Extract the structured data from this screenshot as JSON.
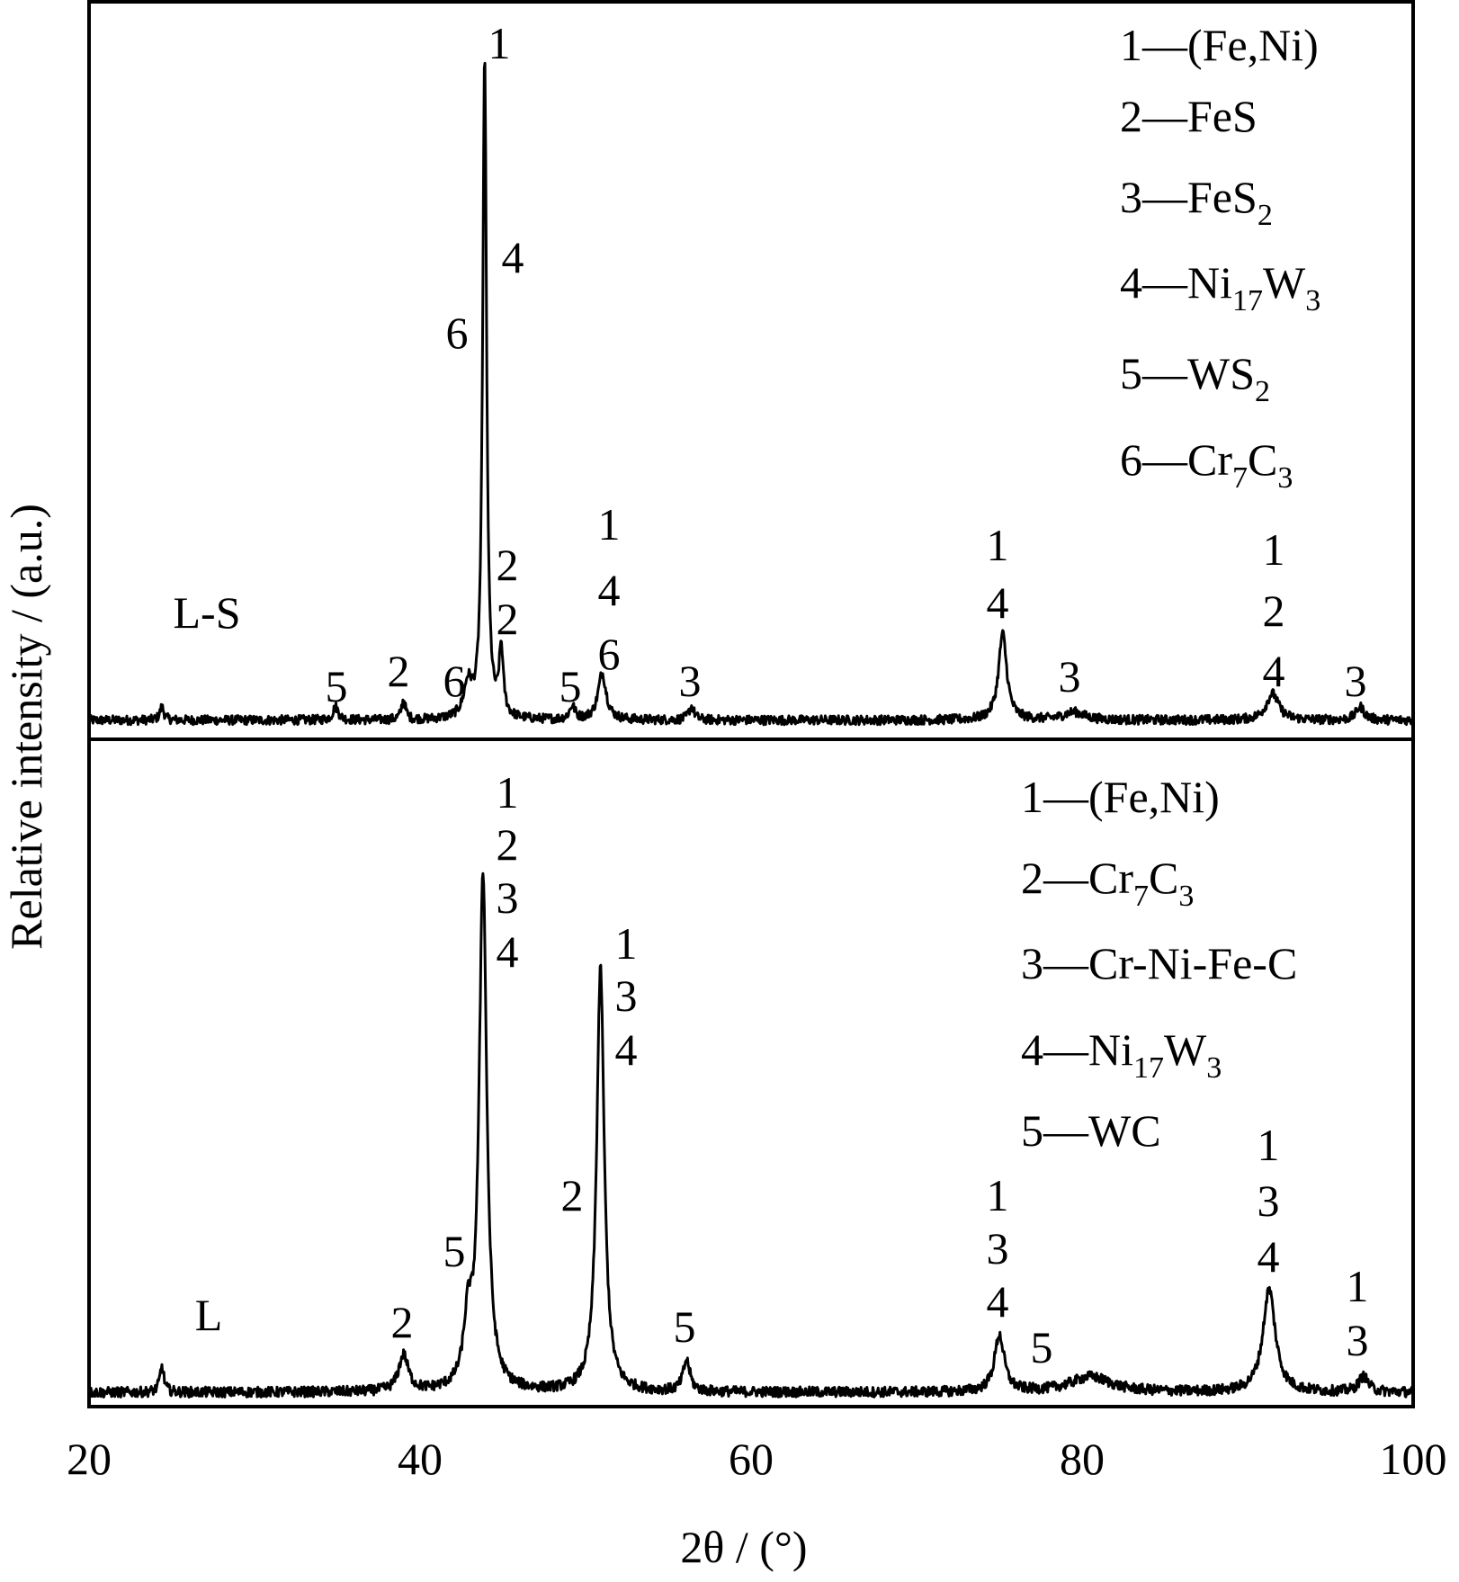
{
  "chart_data": {
    "type": "line",
    "xlabel": "2θ / (°)",
    "ylabel": "Relative intensity / (a.u.)",
    "xlim": [
      20,
      100
    ],
    "xticks": [
      "20",
      "40",
      "60",
      "80",
      "100"
    ],
    "grid": false,
    "panels": [
      {
        "name": "L-S",
        "ylim": [
          0,
          1.05
        ],
        "peaks": [
          {
            "x": 24.4,
            "y": 0.02,
            "fwhm": 0.3
          },
          {
            "x": 34.9,
            "y": 0.02,
            "fwhm": 0.4
          },
          {
            "x": 39.0,
            "y": 0.03,
            "fwhm": 0.3
          },
          {
            "x": 42.9,
            "y": 0.05,
            "fwhm": 0.6
          },
          {
            "x": 43.9,
            "y": 1.0,
            "fwhm": 0.28
          },
          {
            "x": 44.9,
            "y": 0.1,
            "fwhm": 0.3
          },
          {
            "x": 49.2,
            "y": 0.02,
            "fwhm": 0.4
          },
          {
            "x": 51.0,
            "y": 0.07,
            "fwhm": 0.6
          },
          {
            "x": 56.4,
            "y": 0.02,
            "fwhm": 0.4
          },
          {
            "x": 75.2,
            "y": 0.13,
            "fwhm": 0.6
          },
          {
            "x": 79.5,
            "y": 0.012,
            "fwhm": 1.5
          },
          {
            "x": 91.5,
            "y": 0.04,
            "fwhm": 0.9
          },
          {
            "x": 96.8,
            "y": 0.02,
            "fwhm": 0.6
          }
        ],
        "peak_labels": [
          "1",
          "4",
          "6",
          "2",
          "2",
          "6",
          "2",
          "5",
          "5",
          "1",
          "4",
          "6",
          "3",
          "1",
          "4",
          "3",
          "1",
          "2",
          "4",
          "3"
        ],
        "legend": [
          [
            {
              "t": "1—(Fe,Ni)"
            }
          ],
          [
            {
              "t": "2—FeS"
            }
          ],
          [
            {
              "t": "3—FeS"
            },
            {
              "t": "2",
              "sub": true
            }
          ],
          [
            {
              "t": "4—Ni"
            },
            {
              "t": "17",
              "sub": true
            },
            {
              "t": "W"
            },
            {
              "t": "3",
              "sub": true
            }
          ],
          [
            {
              "t": "5—WS"
            },
            {
              "t": "2",
              "sub": true
            }
          ],
          [
            {
              "t": "6—Cr"
            },
            {
              "t": "7",
              "sub": true
            },
            {
              "t": "C"
            },
            {
              "t": "3",
              "sub": true
            }
          ]
        ]
      },
      {
        "name": "L",
        "ylim": [
          0,
          1.05
        ],
        "peaks": [
          {
            "x": 24.4,
            "y": 0.05,
            "fwhm": 0.3
          },
          {
            "x": 39.0,
            "y": 0.07,
            "fwhm": 0.7
          },
          {
            "x": 42.9,
            "y": 0.12,
            "fwhm": 0.6
          },
          {
            "x": 43.8,
            "y": 1.0,
            "fwhm": 0.55
          },
          {
            "x": 50.9,
            "y": 0.82,
            "fwhm": 0.55
          },
          {
            "x": 56.1,
            "y": 0.06,
            "fwhm": 0.5
          },
          {
            "x": 75.0,
            "y": 0.11,
            "fwhm": 0.7
          },
          {
            "x": 80.5,
            "y": 0.03,
            "fwhm": 3.0
          },
          {
            "x": 91.3,
            "y": 0.2,
            "fwhm": 0.9
          },
          {
            "x": 97.0,
            "y": 0.03,
            "fwhm": 0.7
          }
        ],
        "peak_labels": [
          "1",
          "2",
          "3",
          "4",
          "1",
          "3",
          "4",
          "2",
          "5",
          "2",
          "5",
          "1",
          "3",
          "4",
          "5",
          "1",
          "3",
          "4",
          "1",
          "3"
        ],
        "legend": [
          [
            {
              "t": "1—(Fe,Ni)"
            }
          ],
          [
            {
              "t": "2—Cr"
            },
            {
              "t": "7",
              "sub": true
            },
            {
              "t": "C"
            },
            {
              "t": "3",
              "sub": true
            }
          ],
          [
            {
              "t": "3—Cr-Ni-Fe-C"
            }
          ],
          [
            {
              "t": "4—Ni"
            },
            {
              "t": "17",
              "sub": true
            },
            {
              "t": "W"
            },
            {
              "t": "3",
              "sub": true
            }
          ],
          [
            {
              "t": "5—WC"
            }
          ]
        ]
      }
    ]
  }
}
